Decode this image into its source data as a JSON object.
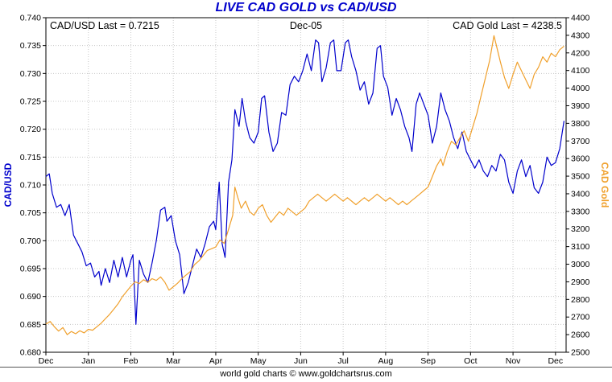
{
  "title": "LIVE CAD GOLD vs CAD/USD",
  "annotations": {
    "left": "CAD/USD Last = 0.7215",
    "center": "Dec-05",
    "right": "CAD Gold Last = 4238.5"
  },
  "footer": "world gold charts © www.goldchartsrus.com",
  "colors": {
    "title": "#0000cc",
    "cadusd": "#0000cc",
    "gold": "#f0a02c",
    "grid": "#c8c8c8"
  },
  "chart_data": {
    "type": "line",
    "title": "LIVE CAD GOLD vs CAD/USD",
    "x_tick_labels": [
      "Dec",
      "Jan",
      "Feb",
      "Mar",
      "Apr",
      "May",
      "Jun",
      "Jul",
      "Aug",
      "Sep",
      "Oct",
      "Nov",
      "Dec"
    ],
    "x_range": [
      0,
      12.25
    ],
    "grid": true,
    "left_axis": {
      "label": "CAD/USD",
      "min": 0.68,
      "max": 0.74,
      "step": 0.005,
      "color": "#0000cc"
    },
    "right_axis": {
      "label": "CAD Gold",
      "min": 2500,
      "max": 4400,
      "step": 100,
      "color": "#f0a02c"
    },
    "series": [
      {
        "name": "CAD/USD",
        "axis": "left",
        "color": "#0000cc",
        "last": 0.7215,
        "points": [
          [
            0,
            0.7115
          ],
          [
            0.08,
            0.712
          ],
          [
            0.15,
            0.7085
          ],
          [
            0.25,
            0.706
          ],
          [
            0.35,
            0.7065
          ],
          [
            0.45,
            0.7045
          ],
          [
            0.55,
            0.7065
          ],
          [
            0.65,
            0.701
          ],
          [
            0.75,
            0.6995
          ],
          [
            0.85,
            0.698
          ],
          [
            0.95,
            0.6955
          ],
          [
            1.05,
            0.696
          ],
          [
            1.15,
            0.6935
          ],
          [
            1.25,
            0.6945
          ],
          [
            1.3,
            0.692
          ],
          [
            1.4,
            0.695
          ],
          [
            1.5,
            0.6925
          ],
          [
            1.6,
            0.6965
          ],
          [
            1.7,
            0.6935
          ],
          [
            1.8,
            0.697
          ],
          [
            1.9,
            0.6935
          ],
          [
            2,
            0.6965
          ],
          [
            2.05,
            0.6975
          ],
          [
            2.12,
            0.685
          ],
          [
            2.2,
            0.6965
          ],
          [
            2.3,
            0.694
          ],
          [
            2.4,
            0.6925
          ],
          [
            2.5,
            0.696
          ],
          [
            2.6,
            0.7
          ],
          [
            2.7,
            0.7055
          ],
          [
            2.8,
            0.706
          ],
          [
            2.85,
            0.7035
          ],
          [
            2.95,
            0.7045
          ],
          [
            3.05,
            0.7
          ],
          [
            3.15,
            0.6975
          ],
          [
            3.25,
            0.6905
          ],
          [
            3.35,
            0.6925
          ],
          [
            3.45,
            0.6955
          ],
          [
            3.55,
            0.6985
          ],
          [
            3.65,
            0.697
          ],
          [
            3.75,
            0.6995
          ],
          [
            3.85,
            0.7025
          ],
          [
            3.95,
            0.7035
          ],
          [
            4,
            0.702
          ],
          [
            4.08,
            0.7105
          ],
          [
            4.15,
            0.6995
          ],
          [
            4.22,
            0.697
          ],
          [
            4.3,
            0.7105
          ],
          [
            4.38,
            0.7145
          ],
          [
            4.45,
            0.7235
          ],
          [
            4.55,
            0.7205
          ],
          [
            4.62,
            0.7255
          ],
          [
            4.7,
            0.7215
          ],
          [
            4.8,
            0.7185
          ],
          [
            4.9,
            0.7175
          ],
          [
            5,
            0.7195
          ],
          [
            5.08,
            0.7255
          ],
          [
            5.15,
            0.726
          ],
          [
            5.25,
            0.7195
          ],
          [
            5.35,
            0.716
          ],
          [
            5.45,
            0.7175
          ],
          [
            5.55,
            0.723
          ],
          [
            5.65,
            0.7225
          ],
          [
            5.75,
            0.728
          ],
          [
            5.85,
            0.7295
          ],
          [
            5.95,
            0.7285
          ],
          [
            6.05,
            0.7305
          ],
          [
            6.15,
            0.7335
          ],
          [
            6.25,
            0.7305
          ],
          [
            6.35,
            0.736
          ],
          [
            6.42,
            0.7355
          ],
          [
            6.5,
            0.7285
          ],
          [
            6.6,
            0.731
          ],
          [
            6.7,
            0.7355
          ],
          [
            6.78,
            0.736
          ],
          [
            6.85,
            0.7305
          ],
          [
            6.95,
            0.7305
          ],
          [
            7.05,
            0.7355
          ],
          [
            7.12,
            0.736
          ],
          [
            7.2,
            0.733
          ],
          [
            7.3,
            0.7305
          ],
          [
            7.4,
            0.727
          ],
          [
            7.5,
            0.7285
          ],
          [
            7.6,
            0.7245
          ],
          [
            7.7,
            0.7265
          ],
          [
            7.8,
            0.7345
          ],
          [
            7.88,
            0.735
          ],
          [
            7.95,
            0.7295
          ],
          [
            8.05,
            0.7275
          ],
          [
            8.15,
            0.7225
          ],
          [
            8.25,
            0.7255
          ],
          [
            8.35,
            0.7235
          ],
          [
            8.45,
            0.7205
          ],
          [
            8.55,
            0.7185
          ],
          [
            8.62,
            0.716
          ],
          [
            8.72,
            0.7245
          ],
          [
            8.8,
            0.7265
          ],
          [
            8.9,
            0.7245
          ],
          [
            9,
            0.7225
          ],
          [
            9.1,
            0.7175
          ],
          [
            9.2,
            0.7205
          ],
          [
            9.3,
            0.7265
          ],
          [
            9.4,
            0.7235
          ],
          [
            9.5,
            0.7215
          ],
          [
            9.6,
            0.7185
          ],
          [
            9.7,
            0.7165
          ],
          [
            9.8,
            0.7195
          ],
          [
            9.9,
            0.716
          ],
          [
            10,
            0.7145
          ],
          [
            10.1,
            0.713
          ],
          [
            10.2,
            0.7145
          ],
          [
            10.3,
            0.7125
          ],
          [
            10.4,
            0.7115
          ],
          [
            10.5,
            0.7135
          ],
          [
            10.6,
            0.7125
          ],
          [
            10.7,
            0.7155
          ],
          [
            10.8,
            0.7145
          ],
          [
            10.9,
            0.7105
          ],
          [
            11,
            0.7085
          ],
          [
            11.1,
            0.7125
          ],
          [
            11.2,
            0.7145
          ],
          [
            11.3,
            0.7115
          ],
          [
            11.4,
            0.7135
          ],
          [
            11.5,
            0.7095
          ],
          [
            11.6,
            0.7085
          ],
          [
            11.7,
            0.7105
          ],
          [
            11.8,
            0.715
          ],
          [
            11.9,
            0.7135
          ],
          [
            12,
            0.714
          ],
          [
            12.1,
            0.7165
          ],
          [
            12.2,
            0.7215
          ]
        ]
      },
      {
        "name": "CAD Gold",
        "axis": "right",
        "color": "#f0a02c",
        "last": 4238.5,
        "points": [
          [
            0,
            2660
          ],
          [
            0.1,
            2675
          ],
          [
            0.2,
            2645
          ],
          [
            0.3,
            2620
          ],
          [
            0.4,
            2640
          ],
          [
            0.5,
            2600
          ],
          [
            0.6,
            2618
          ],
          [
            0.7,
            2605
          ],
          [
            0.8,
            2622
          ],
          [
            0.9,
            2610
          ],
          [
            1,
            2630
          ],
          [
            1.1,
            2625
          ],
          [
            1.2,
            2645
          ],
          [
            1.3,
            2665
          ],
          [
            1.4,
            2690
          ],
          [
            1.5,
            2715
          ],
          [
            1.6,
            2745
          ],
          [
            1.7,
            2775
          ],
          [
            1.8,
            2815
          ],
          [
            1.9,
            2845
          ],
          [
            2,
            2875
          ],
          [
            2.1,
            2900
          ],
          [
            2.2,
            2890
          ],
          [
            2.3,
            2912
          ],
          [
            2.4,
            2898
          ],
          [
            2.5,
            2918
          ],
          [
            2.6,
            2908
          ],
          [
            2.7,
            2928
          ],
          [
            2.8,
            2898
          ],
          [
            2.9,
            2852
          ],
          [
            3,
            2872
          ],
          [
            3.1,
            2892
          ],
          [
            3.2,
            2918
          ],
          [
            3.3,
            2938
          ],
          [
            3.4,
            2958
          ],
          [
            3.5,
            2998
          ],
          [
            3.6,
            3018
          ],
          [
            3.7,
            3048
          ],
          [
            3.8,
            3078
          ],
          [
            3.9,
            3088
          ],
          [
            4,
            3098
          ],
          [
            4.1,
            3138
          ],
          [
            4.2,
            3118
          ],
          [
            4.3,
            3198
          ],
          [
            4.4,
            3278
          ],
          [
            4.45,
            3438
          ],
          [
            4.52,
            3378
          ],
          [
            4.6,
            3318
          ],
          [
            4.7,
            3358
          ],
          [
            4.8,
            3298
          ],
          [
            4.9,
            3278
          ],
          [
            5,
            3318
          ],
          [
            5.1,
            3338
          ],
          [
            5.2,
            3278
          ],
          [
            5.3,
            3238
          ],
          [
            5.4,
            3268
          ],
          [
            5.5,
            3298
          ],
          [
            5.6,
            3278
          ],
          [
            5.7,
            3318
          ],
          [
            5.8,
            3298
          ],
          [
            5.9,
            3278
          ],
          [
            6,
            3298
          ],
          [
            6.1,
            3318
          ],
          [
            6.2,
            3358
          ],
          [
            6.3,
            3378
          ],
          [
            6.4,
            3398
          ],
          [
            6.5,
            3378
          ],
          [
            6.6,
            3358
          ],
          [
            6.7,
            3378
          ],
          [
            6.8,
            3398
          ],
          [
            6.9,
            3378
          ],
          [
            7,
            3358
          ],
          [
            7.1,
            3378
          ],
          [
            7.2,
            3358
          ],
          [
            7.3,
            3338
          ],
          [
            7.4,
            3358
          ],
          [
            7.5,
            3378
          ],
          [
            7.6,
            3358
          ],
          [
            7.7,
            3378
          ],
          [
            7.8,
            3398
          ],
          [
            7.9,
            3378
          ],
          [
            8,
            3358
          ],
          [
            8.1,
            3378
          ],
          [
            8.2,
            3358
          ],
          [
            8.3,
            3338
          ],
          [
            8.4,
            3358
          ],
          [
            8.5,
            3338
          ],
          [
            8.6,
            3358
          ],
          [
            8.7,
            3378
          ],
          [
            8.8,
            3398
          ],
          [
            8.9,
            3418
          ],
          [
            9,
            3438
          ],
          [
            9.1,
            3498
          ],
          [
            9.2,
            3558
          ],
          [
            9.3,
            3598
          ],
          [
            9.35,
            3560
          ],
          [
            9.45,
            3638
          ],
          [
            9.55,
            3698
          ],
          [
            9.65,
            3678
          ],
          [
            9.75,
            3718
          ],
          [
            9.85,
            3758
          ],
          [
            9.95,
            3698
          ],
          [
            10.05,
            3778
          ],
          [
            10.15,
            3858
          ],
          [
            10.25,
            3958
          ],
          [
            10.35,
            4058
          ],
          [
            10.45,
            4158
          ],
          [
            10.55,
            4298
          ],
          [
            10.6,
            4250
          ],
          [
            10.7,
            4150
          ],
          [
            10.8,
            4060
          ],
          [
            10.9,
            3998
          ],
          [
            11,
            4078
          ],
          [
            11.1,
            4148
          ],
          [
            11.2,
            4098
          ],
          [
            11.3,
            4048
          ],
          [
            11.4,
            3998
          ],
          [
            11.5,
            4078
          ],
          [
            11.6,
            4118
          ],
          [
            11.7,
            4178
          ],
          [
            11.8,
            4148
          ],
          [
            11.9,
            4198
          ],
          [
            12,
            4178
          ],
          [
            12.1,
            4218
          ],
          [
            12.2,
            4238.5
          ]
        ]
      }
    ]
  }
}
